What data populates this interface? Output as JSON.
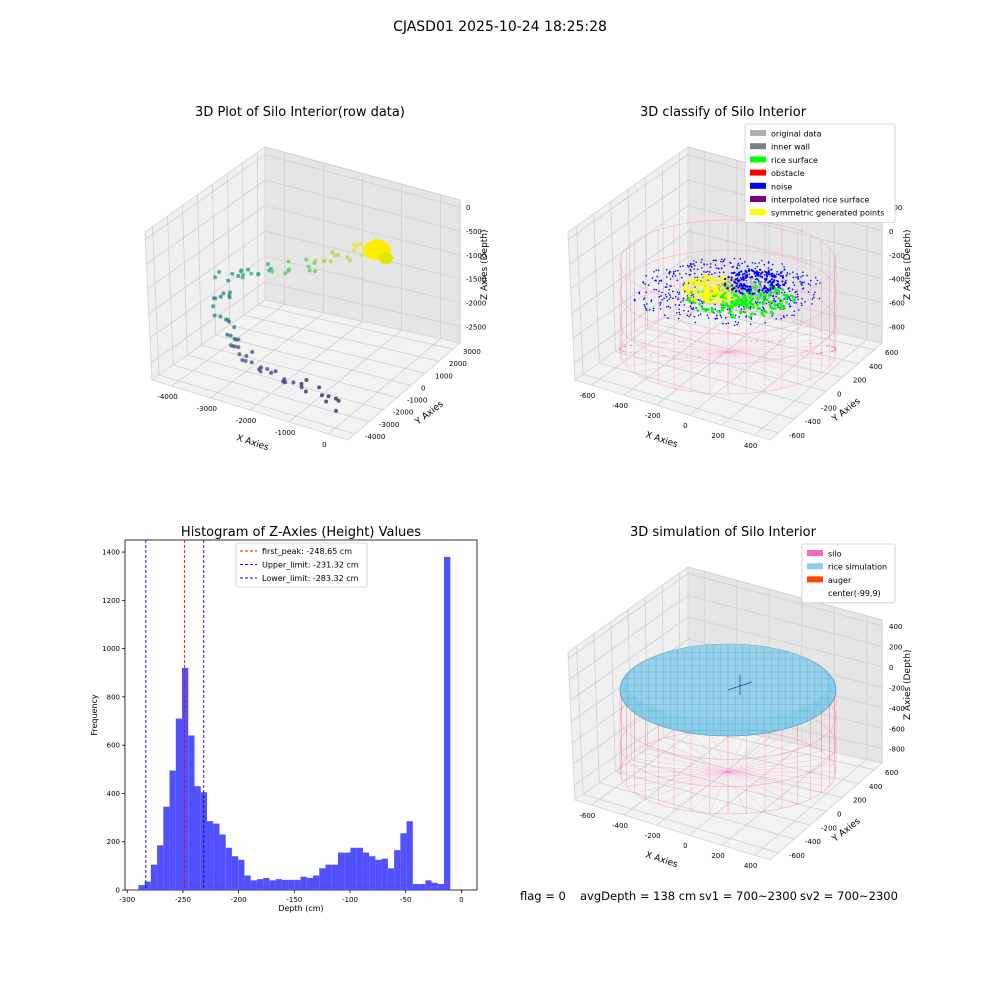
{
  "suptitle": "CJASD01 2025-10-24 18:25:28",
  "footer": {
    "flag": "flag = 0",
    "avg_depth": "avgDepth = 138 cm",
    "sv1": "sv1 = 700~2300",
    "sv2": "sv2 = 700~2300"
  },
  "colors": {
    "histogram_bar": "#5050ff",
    "first_peak_line": "#ff0000",
    "limit_lines": "#0000cc",
    "silo": "#ff69b4",
    "rice_simulation": "#87ceeb",
    "auger": "#ff4500",
    "original_data": "#b0b0b0",
    "inner_wall": "#808080",
    "rice_surface": "#00ff00",
    "obstacle": "#ff0000",
    "noise": "#0000ff",
    "interpolated_rice_surface": "#800080",
    "symmetric_generated_points": "#ffff00"
  },
  "chart_data": [
    {
      "type": "scatter",
      "title": "3D Plot of Silo Interior(row data)",
      "xlabel": "X Axies",
      "ylabel": "Y Axies",
      "zlabel": "Z Axies (Depth)",
      "x_ticks": [
        "-4000",
        "-3000",
        "-2000",
        "-1000",
        "0"
      ],
      "y_ticks": [
        "-4000",
        "-3000",
        "-2000",
        "-1000",
        "0",
        "1000",
        "2000",
        "3000"
      ],
      "z_ticks": [
        "0",
        "-500",
        "-1000",
        "-1500",
        "-2000",
        "-2500"
      ],
      "xlim": [
        -4500,
        500
      ],
      "ylim": [
        -4000,
        3500
      ],
      "zlim": [
        -2700,
        100
      ]
    },
    {
      "type": "scatter",
      "title": "3D classify of Silo Interior",
      "xlabel": "X Axies",
      "ylabel": "Y Axies",
      "zlabel": "Z Axies (Depth)",
      "x_ticks": [
        "-600",
        "-400",
        "-200",
        "0",
        "200",
        "400"
      ],
      "y_ticks": [
        "-600",
        "-400",
        "-200",
        "0",
        "200",
        "400",
        "600"
      ],
      "z_ticks": [
        "200",
        "0",
        "-200",
        "-400",
        "-600",
        "-800"
      ],
      "legend_position": "top-right",
      "legend": [
        {
          "label": "original data",
          "color": "#b0b0b0"
        },
        {
          "label": "inner wall",
          "color": "#808080"
        },
        {
          "label": "rice surface",
          "color": "#00ff00"
        },
        {
          "label": "obstacle",
          "color": "#ff0000"
        },
        {
          "label": "noise",
          "color": "#0000ff"
        },
        {
          "label": "interpolated rice surface",
          "color": "#800080"
        },
        {
          "label": "symmetric generated points",
          "color": "#ffff00"
        }
      ]
    },
    {
      "type": "bar",
      "title": "Histogram of Z-Axies (Height) Values",
      "xlabel": "Depth (cm)",
      "ylabel": "Frequency",
      "xlim": [
        -302,
        14
      ],
      "ylim": [
        0,
        1450
      ],
      "x_ticks": [
        -300,
        -250,
        -200,
        -150,
        -100,
        -50,
        0
      ],
      "y_ticks": [
        0,
        200,
        400,
        600,
        800,
        1000,
        1200,
        1400
      ],
      "bin_start": -290,
      "bin_width": 5.6,
      "values": [
        20,
        35,
        105,
        185,
        345,
        495,
        710,
        920,
        640,
        430,
        405,
        285,
        275,
        230,
        175,
        140,
        125,
        60,
        40,
        45,
        50,
        40,
        45,
        42,
        42,
        42,
        55,
        50,
        60,
        90,
        105,
        105,
        155,
        155,
        175,
        175,
        155,
        140,
        125,
        130,
        90,
        165,
        235,
        285,
        25,
        25,
        40,
        30,
        25,
        1380
      ],
      "vlines": [
        {
          "label": "first_peak: -248.65 cm",
          "x": -248.65,
          "color": "#ff0000"
        },
        {
          "label": "Upper_limit: -231.32 cm",
          "x": -231.32,
          "color": "#0000cc"
        },
        {
          "label": "Lower_limit: -283.32 cm",
          "x": -283.32,
          "color": "#0000cc"
        }
      ],
      "legend_position": "top-center"
    },
    {
      "type": "scatter",
      "title": "3D simulation of Silo Interior",
      "xlabel": "X Axies",
      "ylabel": "Y Axies",
      "zlabel": "Z Axies (Depth)",
      "x_ticks": [
        "-600",
        "-400",
        "-200",
        "0",
        "200",
        "400"
      ],
      "y_ticks": [
        "-600",
        "-400",
        "-200",
        "0",
        "200",
        "400",
        "600"
      ],
      "z_ticks": [
        "400",
        "200",
        "0",
        "-200",
        "-400",
        "-600",
        "-800"
      ],
      "legend_position": "top-right",
      "legend": [
        {
          "label": "silo",
          "color": "#ff69b4"
        },
        {
          "label": "rice simulation",
          "color": "#87ceeb"
        },
        {
          "label": "auger",
          "color": "#ff4500"
        },
        {
          "label": "center(-99,9)",
          "color": ""
        }
      ]
    }
  ]
}
